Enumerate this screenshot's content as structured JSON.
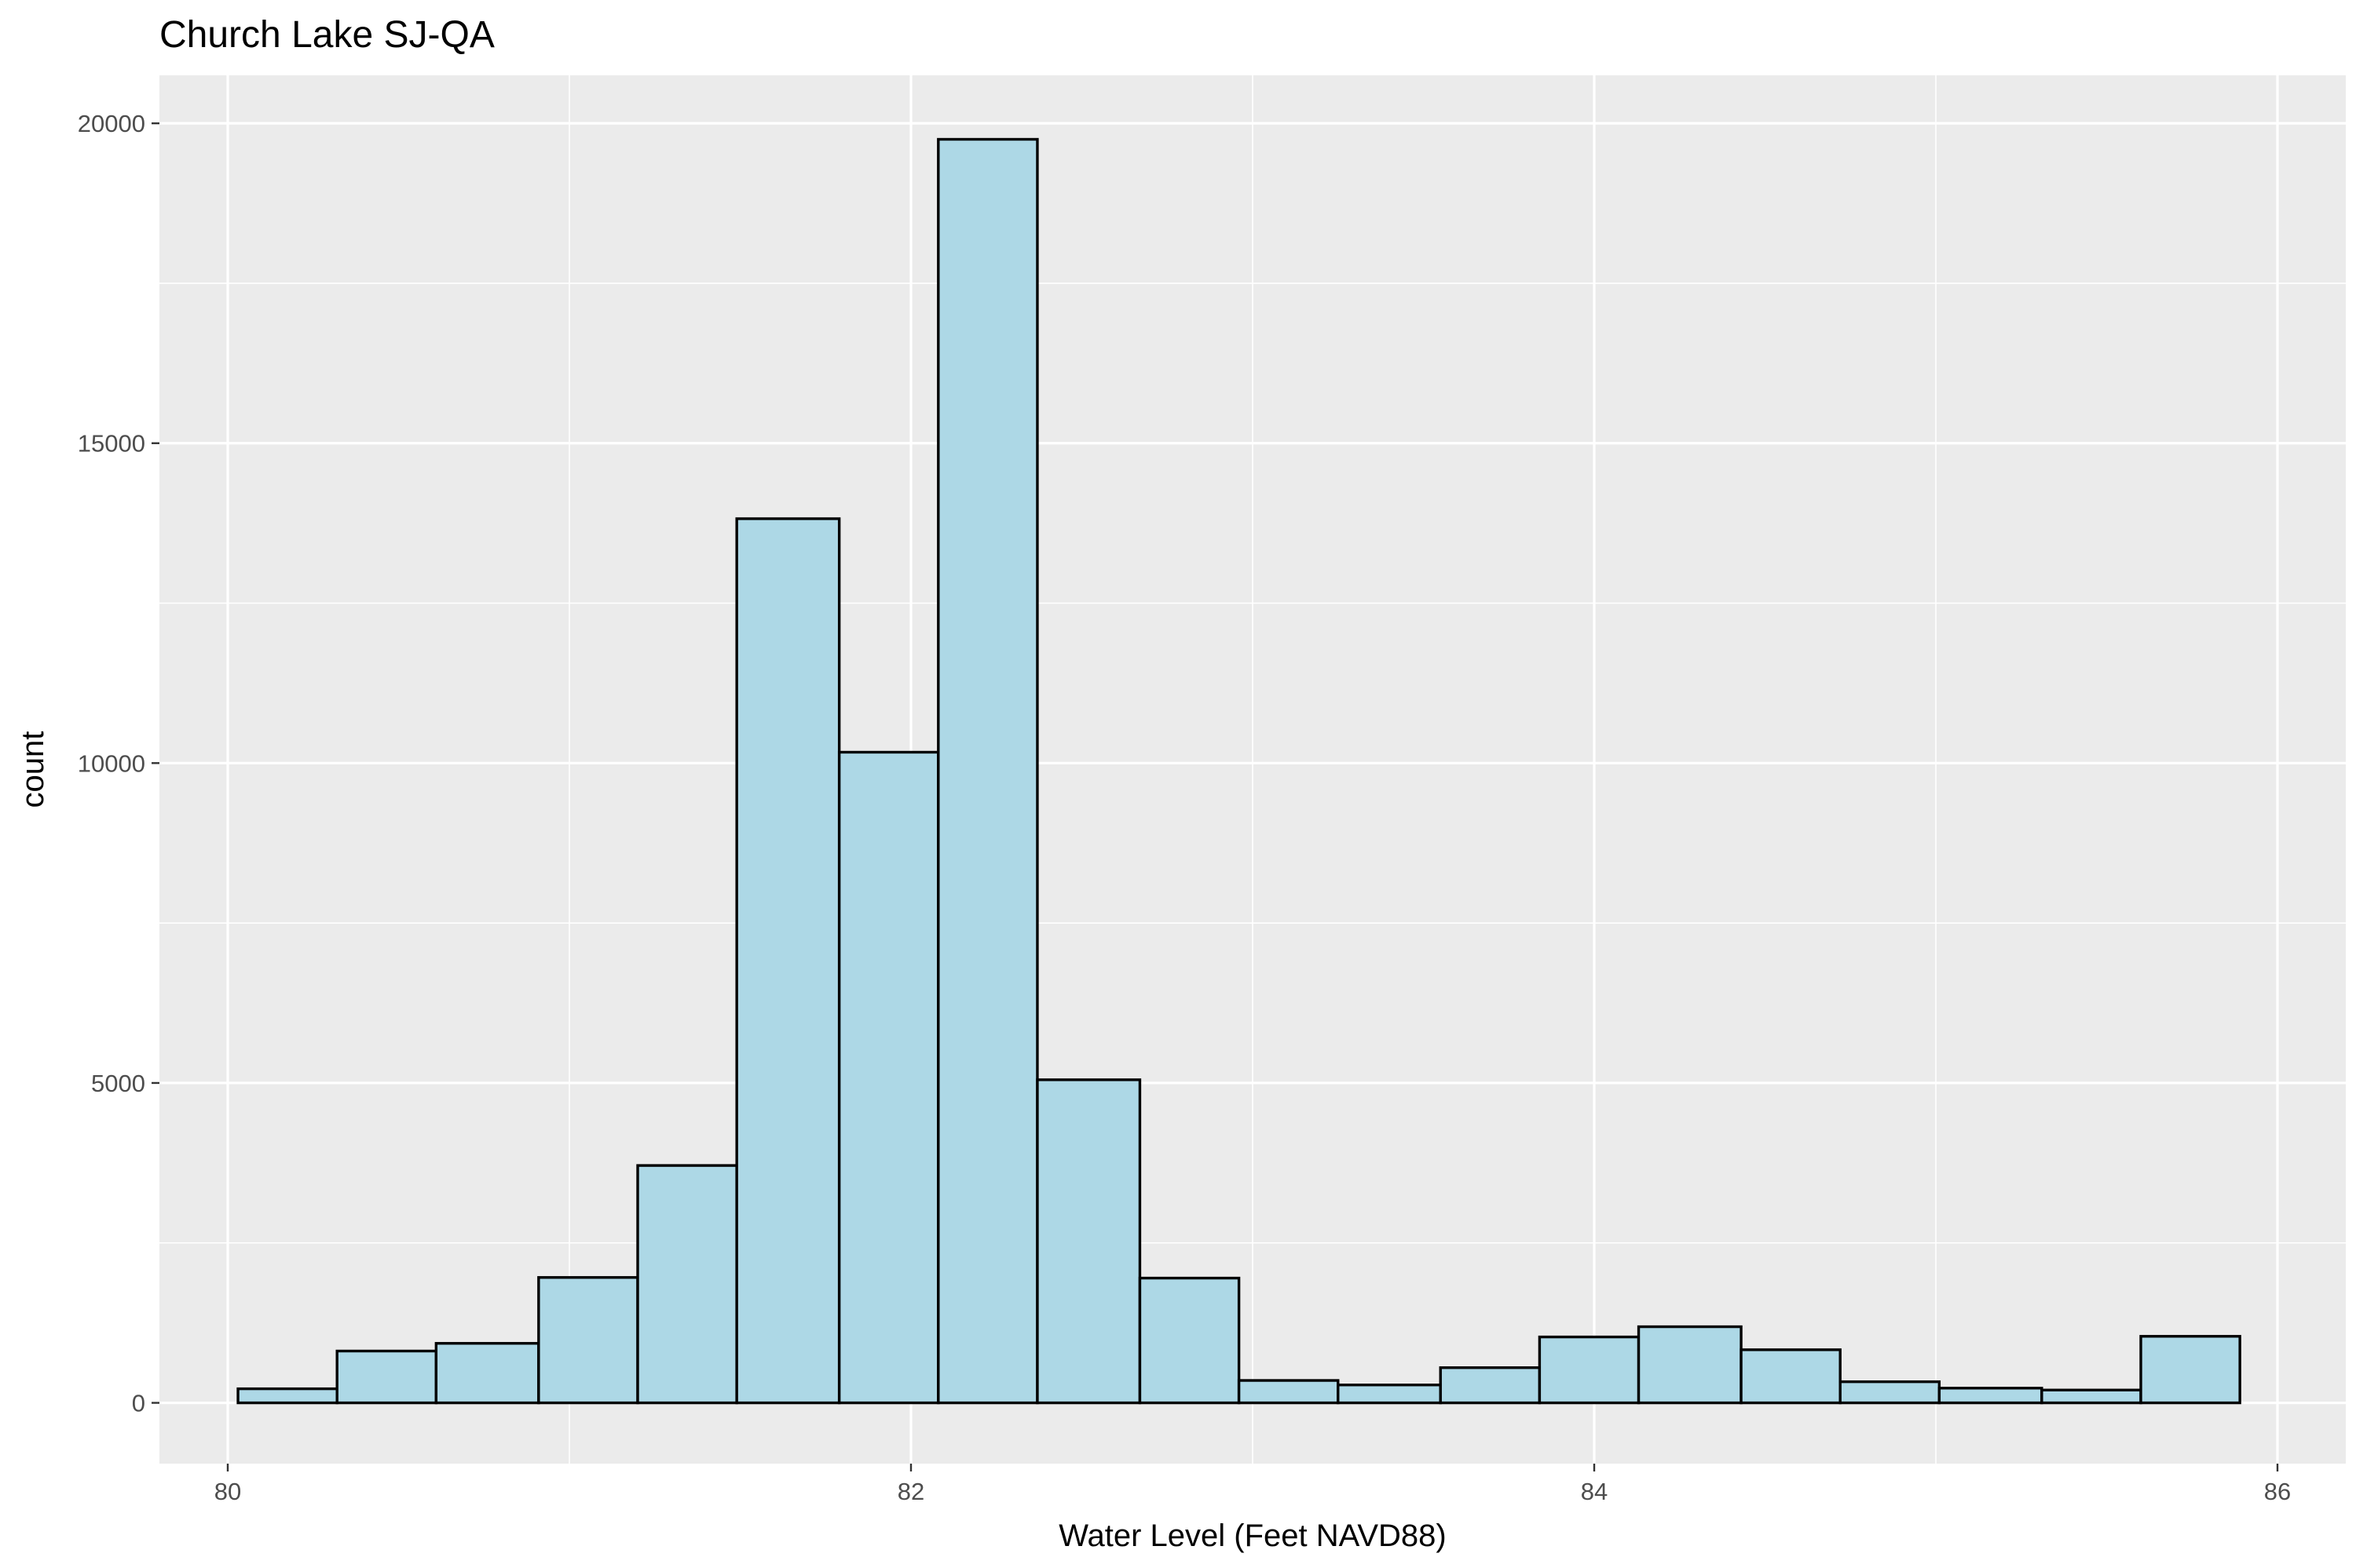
{
  "chart_data": {
    "type": "bar",
    "title": "Church Lake SJ-QA",
    "xlabel": "Water Level (Feet NAVD88)",
    "ylabel": "count",
    "xlim": [
      79.8,
      86.2
    ],
    "ylim": [
      -950,
      20750
    ],
    "x_ticks": [
      80,
      82,
      84,
      86
    ],
    "y_ticks": [
      0,
      5000,
      10000,
      15000,
      20000
    ],
    "grid": true,
    "legend": "none",
    "colors": {
      "panel": "#ebebeb",
      "grid": "#ffffff",
      "bar_fill": "#add8e6",
      "bar_stroke": "#000000"
    },
    "bins": [
      {
        "x0": 80.03,
        "x1": 80.32,
        "value": 220
      },
      {
        "x0": 80.32,
        "x1": 80.61,
        "value": 810
      },
      {
        "x0": 80.61,
        "x1": 80.91,
        "value": 930
      },
      {
        "x0": 80.91,
        "x1": 81.2,
        "value": 1960
      },
      {
        "x0": 81.2,
        "x1": 81.49,
        "value": 3710
      },
      {
        "x0": 81.49,
        "x1": 81.79,
        "value": 13820
      },
      {
        "x0": 81.79,
        "x1": 82.08,
        "value": 10170
      },
      {
        "x0": 82.08,
        "x1": 82.37,
        "value": 19750
      },
      {
        "x0": 82.37,
        "x1": 82.67,
        "value": 5050
      },
      {
        "x0": 82.67,
        "x1": 82.96,
        "value": 1950
      },
      {
        "x0": 82.96,
        "x1": 83.25,
        "value": 350
      },
      {
        "x0": 83.25,
        "x1": 83.55,
        "value": 280
      },
      {
        "x0": 83.55,
        "x1": 83.84,
        "value": 550
      },
      {
        "x0": 83.84,
        "x1": 84.13,
        "value": 1030
      },
      {
        "x0": 84.13,
        "x1": 84.43,
        "value": 1190
      },
      {
        "x0": 84.43,
        "x1": 84.72,
        "value": 830
      },
      {
        "x0": 84.72,
        "x1": 85.01,
        "value": 330
      },
      {
        "x0": 85.01,
        "x1": 85.31,
        "value": 230
      },
      {
        "x0": 85.31,
        "x1": 85.6,
        "value": 200
      },
      {
        "x0": 85.6,
        "x1": 85.89,
        "value": 1040
      }
    ]
  }
}
